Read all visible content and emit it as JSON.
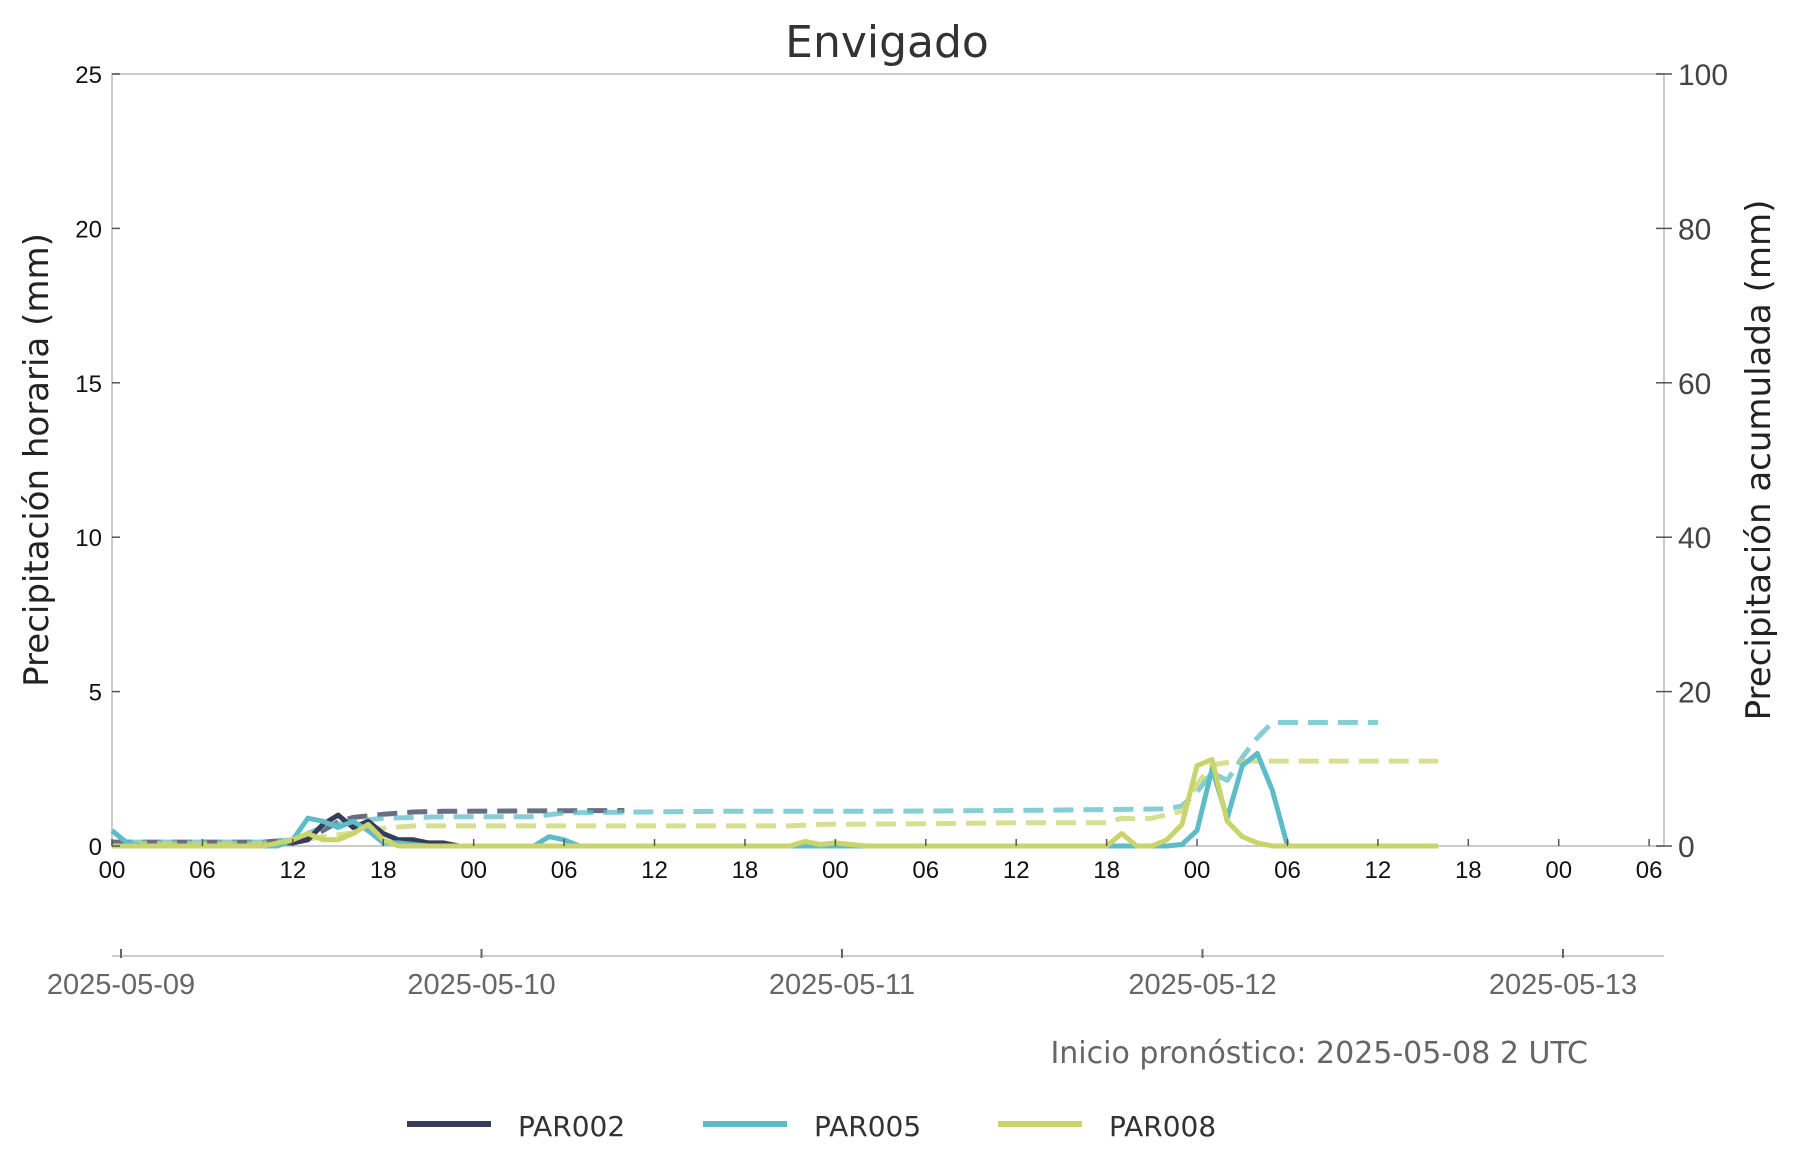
{
  "chart_data": {
    "type": "line",
    "title": "Envigado",
    "ylabel_left": "Precipitación horaria (mm)",
    "ylabel_right": "Precipitación acumulada (mm)",
    "ylim_left": [
      0,
      25
    ],
    "ylim_right": [
      0,
      100
    ],
    "yticks_left": [
      "0",
      "5",
      "10",
      "15",
      "20",
      "25"
    ],
    "yticks_right": [
      "0",
      "20",
      "40",
      "60",
      "80",
      "100"
    ],
    "x_hour_ticks": [
      "00",
      "06",
      "12",
      "18",
      "00",
      "06",
      "12",
      "18",
      "00",
      "06",
      "12",
      "18",
      "00",
      "06",
      "12",
      "18",
      "00",
      "06"
    ],
    "date_ticks": [
      "2025-05-09",
      "2025-05-10",
      "2025-05-11",
      "2025-05-12",
      "2025-05-13"
    ],
    "xlim_hours": [
      0,
      103
    ],
    "note": "Inicio pronóstico: 2025-05-08 2 UTC",
    "grid": false,
    "legend_position": "bottom",
    "series": [
      {
        "name": "PAR002",
        "color": "#363c5a",
        "hourly": [
          [
            0,
            0
          ],
          [
            4,
            0
          ],
          [
            8,
            0
          ],
          [
            10,
            0
          ],
          [
            11,
            0.1
          ],
          [
            12,
            0.1
          ],
          [
            13,
            0.2
          ],
          [
            14,
            0.7
          ],
          [
            15,
            1.0
          ],
          [
            16,
            0.6
          ],
          [
            17,
            0.8
          ],
          [
            18,
            0.4
          ],
          [
            19,
            0.2
          ],
          [
            20,
            0.2
          ],
          [
            21,
            0.1
          ],
          [
            22,
            0.1
          ],
          [
            23,
            0
          ],
          [
            26,
            0
          ],
          [
            34,
            0
          ]
        ],
        "cumulative": [
          [
            0,
            0.5
          ],
          [
            10,
            0.5
          ],
          [
            12,
            0.8
          ],
          [
            13,
            1.2
          ],
          [
            14,
            2.0
          ],
          [
            15,
            3.1
          ],
          [
            16,
            3.7
          ],
          [
            17,
            3.9
          ],
          [
            18,
            4.1
          ],
          [
            20,
            4.4
          ],
          [
            22,
            4.5
          ],
          [
            34,
            4.6
          ]
        ]
      },
      {
        "name": "PAR005",
        "color": "#5dbcc7",
        "hourly": [
          [
            0,
            0.5
          ],
          [
            1,
            0.1
          ],
          [
            2,
            0
          ],
          [
            10,
            0
          ],
          [
            11,
            0
          ],
          [
            12,
            0.2
          ],
          [
            13,
            0.9
          ],
          [
            14,
            0.8
          ],
          [
            15,
            0.6
          ],
          [
            16,
            0.8
          ],
          [
            17,
            0.5
          ],
          [
            18,
            0.1
          ],
          [
            19,
            0.1
          ],
          [
            21,
            0
          ],
          [
            28,
            0
          ],
          [
            29,
            0.3
          ],
          [
            30,
            0.2
          ],
          [
            31,
            0
          ],
          [
            40,
            0
          ],
          [
            50,
            0
          ],
          [
            60,
            0
          ],
          [
            70,
            0
          ],
          [
            71,
            0.05
          ],
          [
            72,
            0.5
          ],
          [
            73,
            2.5
          ],
          [
            74,
            0.9
          ],
          [
            75,
            2.6
          ],
          [
            76,
            3.0
          ],
          [
            77,
            1.8
          ],
          [
            78,
            0
          ],
          [
            79,
            0
          ],
          [
            84,
            0
          ]
        ],
        "cumulative": [
          [
            1,
            0.5
          ],
          [
            10,
            0.5
          ],
          [
            12,
            0.8
          ],
          [
            14,
            2.5
          ],
          [
            16,
            3.2
          ],
          [
            18,
            3.6
          ],
          [
            22,
            3.8
          ],
          [
            28,
            3.8
          ],
          [
            30,
            4.3
          ],
          [
            40,
            4.5
          ],
          [
            50,
            4.5
          ],
          [
            60,
            4.6
          ],
          [
            70,
            4.8
          ],
          [
            71,
            5.2
          ],
          [
            72,
            7.0
          ],
          [
            73,
            9.5
          ],
          [
            74,
            8.5
          ],
          [
            75,
            11.5
          ],
          [
            76,
            14.0
          ],
          [
            77,
            16.0
          ],
          [
            78,
            16.0
          ],
          [
            84,
            16.0
          ]
        ]
      },
      {
        "name": "PAR008",
        "color": "#cad46c",
        "hourly": [
          [
            0,
            0
          ],
          [
            4,
            0
          ],
          [
            8,
            0
          ],
          [
            10,
            0
          ],
          [
            11,
            0.1
          ],
          [
            12,
            0.2
          ],
          [
            13,
            0.4
          ],
          [
            14,
            0.2
          ],
          [
            15,
            0.2
          ],
          [
            16,
            0.4
          ],
          [
            17,
            0.7
          ],
          [
            18,
            0.2
          ],
          [
            19,
            0
          ],
          [
            30,
            0
          ],
          [
            45,
            0
          ],
          [
            46,
            0.15
          ],
          [
            47,
            0.05
          ],
          [
            48,
            0.1
          ],
          [
            50,
            0
          ],
          [
            60,
            0
          ],
          [
            66,
            0
          ],
          [
            66.5,
            0.2
          ],
          [
            67,
            0.4
          ],
          [
            68,
            0
          ],
          [
            69,
            0
          ],
          [
            70,
            0.2
          ],
          [
            71,
            0.7
          ],
          [
            72,
            2.6
          ],
          [
            73,
            2.8
          ],
          [
            74,
            0.8
          ],
          [
            75,
            0.3
          ],
          [
            76,
            0.1
          ],
          [
            77,
            0
          ],
          [
            80,
            0
          ],
          [
            88,
            0
          ]
        ],
        "cumulative": [
          [
            1,
            0.3
          ],
          [
            10,
            0.3
          ],
          [
            12,
            0.6
          ],
          [
            14,
            1.2
          ],
          [
            16,
            1.7
          ],
          [
            18,
            2.3
          ],
          [
            20,
            2.6
          ],
          [
            30,
            2.6
          ],
          [
            40,
            2.6
          ],
          [
            45,
            2.6
          ],
          [
            47,
            2.8
          ],
          [
            55,
            2.9
          ],
          [
            60,
            3.0
          ],
          [
            66,
            3.0
          ],
          [
            67,
            3.6
          ],
          [
            68,
            3.5
          ],
          [
            69,
            3.6
          ],
          [
            71,
            4.5
          ],
          [
            72,
            8.0
          ],
          [
            73,
            10.5
          ],
          [
            74,
            10.8
          ],
          [
            75,
            11.0
          ],
          [
            80,
            11.0
          ],
          [
            88,
            11.0
          ]
        ]
      }
    ]
  }
}
